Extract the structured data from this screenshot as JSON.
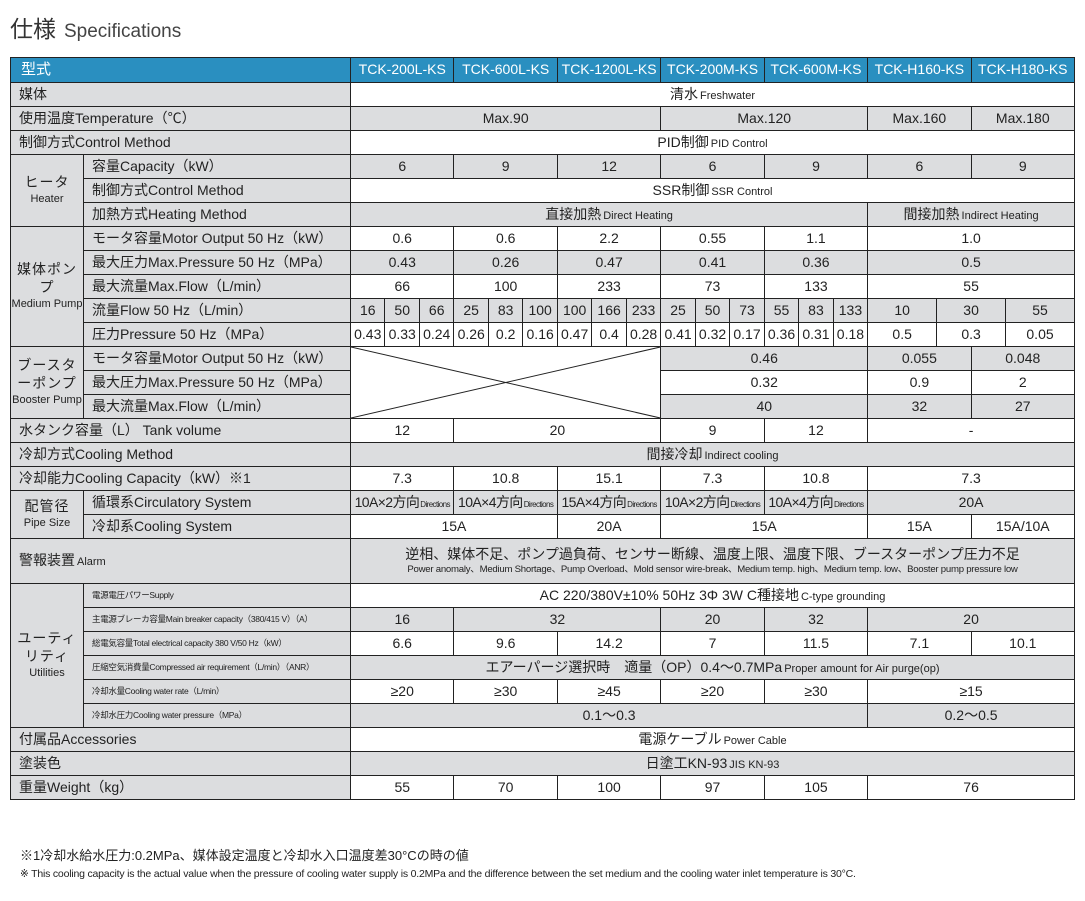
{
  "title": {
    "jp": "仕様",
    "en": "Specifications"
  },
  "colors": {
    "header": "#2a8fc0",
    "label_bg": "#dcdddf"
  },
  "header": {
    "label": "型式",
    "models": [
      "TCK-200L-KS",
      "TCK-600L-KS",
      "TCK-1200L-KS",
      "TCK-200M-KS",
      "TCK-600M-KS",
      "TCK-H160-KS",
      "TCK-H180-KS"
    ]
  },
  "groups": {
    "heater": {
      "jp": "ヒータ",
      "en": "Heater"
    },
    "pump": {
      "jp": "媒体ポンプ",
      "en": "Medium Pump"
    },
    "booster": {
      "jp": "ブースターポンプ",
      "en": "Booster Pump"
    },
    "pipe": {
      "jp": "配管径",
      "en": "Pipe Size"
    },
    "util": {
      "jp": "ユーティリティ",
      "en": "Utilities"
    }
  },
  "rows": [
    {
      "label": "媒体",
      "cells": [
        {
          "cols": 21,
          "text": "清水",
          "small": "Freshwater"
        }
      ]
    },
    {
      "label": "使用温度Temperature（℃）",
      "cells": [
        {
          "cols": 9,
          "text": "Max.90"
        },
        {
          "cols": 6,
          "text": "Max.120"
        },
        {
          "cols": 3,
          "text": "Max.160"
        },
        {
          "cols": 3,
          "text": "Max.180"
        }
      ]
    },
    {
      "label": "制御方式Control Method",
      "cells": [
        {
          "cols": 21,
          "text": "PID制御",
          "small": "PID Control"
        }
      ]
    },
    {
      "group": "heater",
      "groupRows": 3,
      "label": "容量Capacity（kW）",
      "cells": [
        {
          "cols": 3,
          "text": "6"
        },
        {
          "cols": 3,
          "text": "9"
        },
        {
          "cols": 3,
          "text": "12"
        },
        {
          "cols": 3,
          "text": "6"
        },
        {
          "cols": 3,
          "text": "9"
        },
        {
          "cols": 3,
          "text": "6"
        },
        {
          "cols": 3,
          "text": "9"
        }
      ]
    },
    {
      "label": "制御方式Control Method",
      "cells": [
        {
          "cols": 21,
          "text": "SSR制御",
          "small": "SSR Control"
        }
      ]
    },
    {
      "label": "加熱方式Heating Method",
      "cells": [
        {
          "cols": 15,
          "text": "直接加熱",
          "small": "Direct Heating"
        },
        {
          "cols": 6,
          "text": "間接加熱",
          "small": "Indirect Heating"
        }
      ]
    },
    {
      "group": "pump",
      "groupRows": 5,
      "label": "モータ容量Motor Output 50 Hz（kW）",
      "cells": [
        {
          "cols": 3,
          "text": "0.6"
        },
        {
          "cols": 3,
          "text": "0.6"
        },
        {
          "cols": 3,
          "text": "2.2"
        },
        {
          "cols": 3,
          "text": "0.55"
        },
        {
          "cols": 3,
          "text": "1.1"
        },
        {
          "cols": 6,
          "text": "1.0"
        }
      ]
    },
    {
      "label": "最大圧力Max.Pressure 50 Hz（MPa）",
      "cells": [
        {
          "cols": 3,
          "text": "0.43"
        },
        {
          "cols": 3,
          "text": "0.26"
        },
        {
          "cols": 3,
          "text": "0.47"
        },
        {
          "cols": 3,
          "text": "0.41"
        },
        {
          "cols": 3,
          "text": "0.36"
        },
        {
          "cols": 6,
          "text": "0.5"
        }
      ]
    },
    {
      "label": "最大流量Max.Flow（L/min）",
      "cells": [
        {
          "cols": 3,
          "text": "66"
        },
        {
          "cols": 3,
          "text": "100"
        },
        {
          "cols": 3,
          "text": "233"
        },
        {
          "cols": 3,
          "text": "73"
        },
        {
          "cols": 3,
          "text": "133"
        },
        {
          "cols": 6,
          "text": "55"
        }
      ]
    },
    {
      "label": "流量Flow 50 Hz（L/min）",
      "cells": [
        {
          "cols": 1,
          "text": "16"
        },
        {
          "cols": 1,
          "text": "50"
        },
        {
          "cols": 1,
          "text": "66"
        },
        {
          "cols": 1,
          "text": "25"
        },
        {
          "cols": 1,
          "text": "83"
        },
        {
          "cols": 1,
          "text": "100"
        },
        {
          "cols": 1,
          "text": "100"
        },
        {
          "cols": 1,
          "text": "166"
        },
        {
          "cols": 1,
          "text": "233"
        },
        {
          "cols": 1,
          "text": "25"
        },
        {
          "cols": 1,
          "text": "50"
        },
        {
          "cols": 1,
          "text": "73"
        },
        {
          "cols": 1,
          "text": "55"
        },
        {
          "cols": 1,
          "text": "83"
        },
        {
          "cols": 1,
          "text": "133"
        },
        {
          "cols": 2,
          "text": "10"
        },
        {
          "cols": 2,
          "text": "30"
        },
        {
          "cols": 2,
          "text": "55"
        }
      ]
    },
    {
      "label": "圧力Pressure 50 Hz（MPa）",
      "cells": [
        {
          "cols": 1,
          "text": "0.43"
        },
        {
          "cols": 1,
          "text": "0.33"
        },
        {
          "cols": 1,
          "text": "0.24"
        },
        {
          "cols": 1,
          "text": "0.26"
        },
        {
          "cols": 1,
          "text": "0.2"
        },
        {
          "cols": 1,
          "text": "0.16"
        },
        {
          "cols": 1,
          "text": "0.47"
        },
        {
          "cols": 1,
          "text": "0.4"
        },
        {
          "cols": 1,
          "text": "0.28"
        },
        {
          "cols": 1,
          "text": "0.41"
        },
        {
          "cols": 1,
          "text": "0.32"
        },
        {
          "cols": 1,
          "text": "0.17"
        },
        {
          "cols": 1,
          "text": "0.36"
        },
        {
          "cols": 1,
          "text": "0.31"
        },
        {
          "cols": 1,
          "text": "0.18"
        },
        {
          "cols": 2,
          "text": "0.5"
        },
        {
          "cols": 2,
          "text": "0.3"
        },
        {
          "cols": 2,
          "text": "0.05"
        }
      ]
    },
    {
      "group": "booster",
      "groupRows": 3,
      "label": "モータ容量Motor Output 50 Hz（kW）",
      "cells": [
        {
          "cols": 9,
          "rows": 3,
          "crossed": true
        },
        {
          "cols": 6,
          "text": "0.46"
        },
        {
          "cols": 3,
          "text": "0.055"
        },
        {
          "cols": 3,
          "text": "0.048"
        }
      ]
    },
    {
      "label": "最大圧力Max.Pressure 50 Hz（MPa）",
      "cells": [
        {
          "cols": 6,
          "text": "0.32"
        },
        {
          "cols": 3,
          "text": "0.9"
        },
        {
          "cols": 3,
          "text": "2"
        }
      ]
    },
    {
      "label": "最大流量Max.Flow（L/min）",
      "cells": [
        {
          "cols": 6,
          "text": "40"
        },
        {
          "cols": 3,
          "text": "32"
        },
        {
          "cols": 3,
          "text": "27"
        }
      ]
    },
    {
      "label": "水タンク容量（L） Tank volume",
      "cells": [
        {
          "cols": 3,
          "text": "12"
        },
        {
          "cols": 6,
          "text": "20"
        },
        {
          "cols": 3,
          "text": "9"
        },
        {
          "cols": 3,
          "text": "12"
        },
        {
          "cols": 6,
          "text": "-"
        }
      ]
    },
    {
      "label": "冷却方式Cooling Method",
      "cells": [
        {
          "cols": 21,
          "text": "間接冷却",
          "small": "Indirect cooling"
        }
      ]
    },
    {
      "label": "冷却能力Cooling Capacity（kW）※1",
      "cells": [
        {
          "cols": 3,
          "text": "7.3"
        },
        {
          "cols": 3,
          "text": "10.8"
        },
        {
          "cols": 3,
          "text": "15.1"
        },
        {
          "cols": 3,
          "text": "7.3"
        },
        {
          "cols": 3,
          "text": "10.8"
        },
        {
          "cols": 6,
          "text": "7.3"
        }
      ]
    },
    {
      "group": "pipe",
      "groupRows": 2,
      "label": "循環系Circulatory System",
      "cells": [
        {
          "cols": 3,
          "text": "10A×2方向",
          "small": "Directions",
          "pipe": true
        },
        {
          "cols": 3,
          "text": "10A×4方向",
          "small": "Directions",
          "pipe": true
        },
        {
          "cols": 3,
          "text": "15A×4方向",
          "small": "Directions",
          "pipe": true
        },
        {
          "cols": 3,
          "text": "10A×2方向",
          "small": "Directions",
          "pipe": true
        },
        {
          "cols": 3,
          "text": "10A×4方向",
          "small": "Directions",
          "pipe": true
        },
        {
          "cols": 6,
          "text": "20A"
        }
      ]
    },
    {
      "label": "冷却系Cooling System",
      "cells": [
        {
          "cols": 6,
          "text": "15A"
        },
        {
          "cols": 3,
          "text": "20A"
        },
        {
          "cols": 6,
          "text": "15A"
        },
        {
          "cols": 3,
          "text": "15A"
        },
        {
          "cols": 3,
          "text": "15A/10A"
        }
      ]
    },
    {
      "label": "警報装置",
      "labelSmall": "Alarm",
      "alarm": true,
      "cells": [
        {
          "cols": 21,
          "text": "逆相、媒体不足、ポンプ過負荷、センサー断線、温度上限、温度下限、ブースターポンプ圧力不足",
          "alarmEn": "Power anomaly、Medium Shortage、Pump Overload、Mold sensor wire-break、Medium temp. high、Medium temp. low、Booster pump pressure low"
        }
      ]
    },
    {
      "group": "util",
      "groupRows": 6,
      "tiny": true,
      "label": "電源電圧パワーSupply",
      "cells": [
        {
          "cols": 21,
          "text": "AC 220/380V±10% 50Hz 3Φ 3W C種接地",
          "small": "C-type grounding"
        }
      ]
    },
    {
      "tiny": true,
      "label": "主電源ブレーカ容量Main breaker capacity（380/415 V）（A）",
      "cells": [
        {
          "cols": 3,
          "text": "16"
        },
        {
          "cols": 6,
          "text": "32"
        },
        {
          "cols": 3,
          "text": "20"
        },
        {
          "cols": 3,
          "text": "32"
        },
        {
          "cols": 6,
          "text": "20"
        }
      ]
    },
    {
      "tiny": true,
      "label": "総電気容量Total electrical capacity 380 V/50 Hz（kW）",
      "cells": [
        {
          "cols": 3,
          "text": "6.6"
        },
        {
          "cols": 3,
          "text": "9.6"
        },
        {
          "cols": 3,
          "text": "14.2"
        },
        {
          "cols": 3,
          "text": "7"
        },
        {
          "cols": 3,
          "text": "11.5"
        },
        {
          "cols": 3,
          "text": "7.1"
        },
        {
          "cols": 3,
          "text": "10.1"
        }
      ]
    },
    {
      "tiny": true,
      "label": "圧縮空気消費量Compressed air requirement（L/min）（ANR）",
      "cells": [
        {
          "cols": 21,
          "text": "エアーパージ選択時　適量（OP）0.4～0.7MPa",
          "small": "Proper amount for Air purge(op)"
        }
      ]
    },
    {
      "tiny": true,
      "label": "冷却水量Cooling water rate（L/min）",
      "cells": [
        {
          "cols": 3,
          "text": "≥20"
        },
        {
          "cols": 3,
          "text": "≥30"
        },
        {
          "cols": 3,
          "text": "≥45"
        },
        {
          "cols": 3,
          "text": "≥20"
        },
        {
          "cols": 3,
          "text": "≥30"
        },
        {
          "cols": 6,
          "text": "≥15"
        }
      ]
    },
    {
      "tiny": true,
      "label": "冷却水圧力Cooling water pressure（MPa）",
      "cells": [
        {
          "cols": 15,
          "text": "0.1～0.3"
        },
        {
          "cols": 6,
          "text": "0.2～0.5"
        }
      ]
    },
    {
      "label": "付属品Accessories",
      "cells": [
        {
          "cols": 21,
          "text": "電源ケーブル",
          "small": "Power Cable"
        }
      ]
    },
    {
      "label": "塗装色",
      "cells": [
        {
          "cols": 21,
          "text": "日塗工KN-93",
          "small": "JIS KN-93"
        }
      ]
    },
    {
      "label": "重量Weight（kg）",
      "cells": [
        {
          "cols": 3,
          "text": "55"
        },
        {
          "cols": 3,
          "text": "70"
        },
        {
          "cols": 3,
          "text": "100"
        },
        {
          "cols": 3,
          "text": "97"
        },
        {
          "cols": 3,
          "text": "105"
        },
        {
          "cols": 6,
          "text": "76"
        }
      ]
    }
  ],
  "footnotes": [
    "※1冷却水給水圧力:0.2MPa、媒体設定温度と冷却水入口温度差30°Cの時の値",
    "※  This cooling capacity is the actual value when the pressure of cooling water supply is 0.2MPa and the difference between the set medium and the cooling water inlet temperature is 30°C."
  ]
}
